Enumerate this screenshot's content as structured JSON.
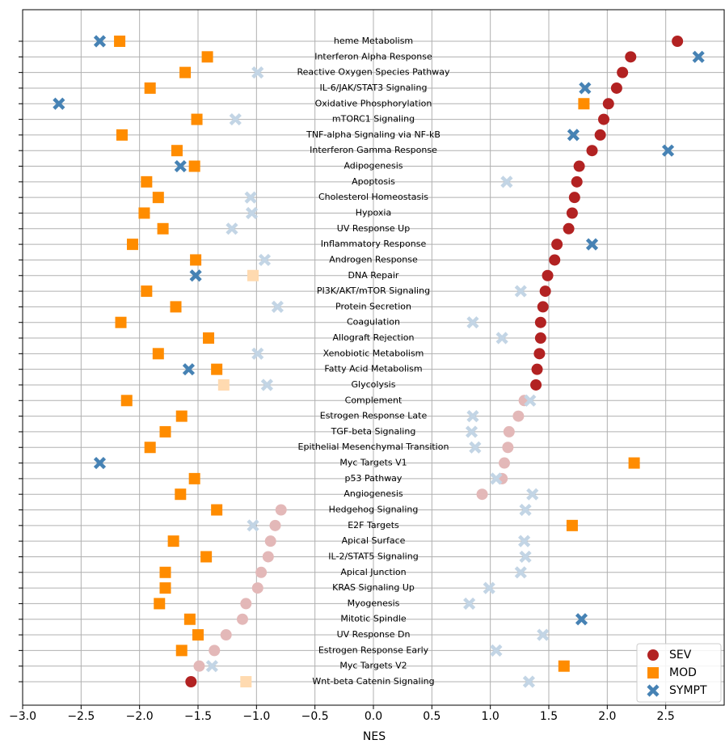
{
  "chart_data": {
    "type": "dot",
    "xlabel": "NES",
    "categories": [
      "heme Metabolism",
      "Interferon Alpha Response",
      "Reactive Oxygen Species Pathway",
      "IL-6/JAK/STAT3 Signaling",
      "Oxidative Phosphorylation",
      "mTORC1 Signaling",
      "TNF-alpha Signaling via NF-kB",
      "Interferon Gamma Response",
      "Adipogenesis",
      "Apoptosis",
      "Cholesterol Homeostasis",
      "Hypoxia",
      "UV Response Up",
      "Inflammatory Response",
      "Androgen Response",
      "DNA Repair",
      "PI3K/AKT/mTOR  Signaling",
      "Protein Secretion",
      "Coagulation",
      "Allograft Rejection",
      "Xenobiotic Metabolism",
      "Fatty Acid Metabolism",
      "Glycolysis",
      "Complement",
      "Estrogen Response Late",
      "TGF-beta Signaling",
      "Epithelial Mesenchymal Transition",
      "Myc Targets V1",
      "p53 Pathway",
      "Angiogenesis",
      "Hedgehog Signaling",
      "E2F Targets",
      "Apical Surface",
      "IL-2/STAT5 Signaling",
      "Apical Junction",
      "KRAS Signaling Up",
      "Myogenesis",
      "Mitotic Spindle",
      "UV Response Dn",
      "Estrogen Response Early",
      "Myc Targets V2",
      "Wnt-beta Catenin Signaling"
    ],
    "series": [
      {
        "name": "SEV",
        "marker": "circle",
        "color": "#b22222",
        "faded_color": "#e3b8b8",
        "values": [
          2.6,
          2.2,
          2.13,
          2.08,
          2.01,
          1.97,
          1.94,
          1.87,
          1.76,
          1.74,
          1.72,
          1.7,
          1.67,
          1.57,
          1.55,
          1.49,
          1.47,
          1.45,
          1.43,
          1.43,
          1.42,
          1.4,
          1.39,
          1.29,
          1.24,
          1.16,
          1.15,
          1.12,
          1.1,
          0.93,
          -0.79,
          -0.84,
          -0.88,
          -0.9,
          -0.96,
          -0.99,
          -1.09,
          -1.12,
          -1.26,
          -1.36,
          -1.49,
          -1.56
        ],
        "faded": [
          false,
          false,
          false,
          false,
          false,
          false,
          false,
          false,
          false,
          false,
          false,
          false,
          false,
          false,
          false,
          false,
          false,
          false,
          false,
          false,
          false,
          false,
          false,
          true,
          true,
          true,
          true,
          true,
          true,
          true,
          true,
          true,
          true,
          true,
          true,
          true,
          true,
          true,
          true,
          true,
          true,
          false
        ]
      },
      {
        "name": "MOD",
        "marker": "square",
        "color": "#ff8c00",
        "faded_color": "#ffdab0",
        "values": [
          -2.17,
          -1.42,
          -1.61,
          -1.91,
          1.8,
          -1.51,
          -2.15,
          -1.68,
          -1.53,
          -1.94,
          -1.84,
          -1.96,
          -1.8,
          -2.06,
          -1.52,
          -1.03,
          -1.94,
          -1.69,
          -2.16,
          -1.41,
          -1.84,
          -1.34,
          -1.28,
          -2.11,
          -1.64,
          -1.78,
          -1.91,
          2.23,
          -1.53,
          -1.65,
          -1.34,
          1.7,
          -1.71,
          -1.43,
          -1.78,
          -1.78,
          -1.83,
          -1.57,
          -1.5,
          -1.64,
          1.63,
          -1.09
        ],
        "faded": [
          false,
          false,
          false,
          false,
          false,
          false,
          false,
          false,
          false,
          false,
          false,
          false,
          false,
          false,
          false,
          true,
          false,
          false,
          false,
          false,
          false,
          false,
          true,
          false,
          false,
          false,
          false,
          false,
          false,
          false,
          false,
          false,
          false,
          false,
          false,
          false,
          false,
          false,
          false,
          false,
          false,
          true
        ]
      },
      {
        "name": "SYMPT",
        "marker": "x",
        "color": "#4682b4",
        "faded_color": "#c3d5e5",
        "values": [
          -2.34,
          2.78,
          -0.99,
          1.81,
          -2.69,
          -1.18,
          1.71,
          2.52,
          -1.65,
          1.14,
          -1.05,
          -1.04,
          -1.21,
          1.87,
          -0.93,
          -1.52,
          1.26,
          -0.82,
          0.85,
          1.1,
          -0.99,
          -1.58,
          -0.91,
          1.34,
          0.85,
          0.84,
          0.87,
          -2.34,
          1.05,
          1.36,
          1.3,
          -1.03,
          1.29,
          1.3,
          1.26,
          0.99,
          0.82,
          1.78,
          1.45,
          1.05,
          -1.38,
          1.33
        ],
        "faded": [
          false,
          false,
          true,
          false,
          false,
          true,
          false,
          false,
          false,
          true,
          true,
          true,
          true,
          false,
          true,
          false,
          true,
          true,
          true,
          true,
          true,
          false,
          true,
          true,
          true,
          true,
          true,
          false,
          true,
          true,
          true,
          true,
          true,
          true,
          true,
          true,
          true,
          false,
          true,
          true,
          true,
          true
        ]
      }
    ],
    "xlim": [
      -3.0,
      3.0
    ],
    "xticks": [
      {
        "value": -3.0,
        "label": "−3.0"
      },
      {
        "value": -2.5,
        "label": "−2.5"
      },
      {
        "value": -2.0,
        "label": "−2.0"
      },
      {
        "value": -1.5,
        "label": "−1.5"
      },
      {
        "value": -1.0,
        "label": "−1.0"
      },
      {
        "value": -0.5,
        "label": "−0.5"
      },
      {
        "value": 0,
        "label": "0.0"
      },
      {
        "value": 0.5,
        "label": "0.5"
      },
      {
        "value": 1.0,
        "label": "1.0"
      },
      {
        "value": 1.5,
        "label": "1.5"
      },
      {
        "value": 2.0,
        "label": "2.0"
      },
      {
        "value": 2.5,
        "label": "2.5"
      }
    ],
    "grid": true,
    "legend": "lower right"
  }
}
